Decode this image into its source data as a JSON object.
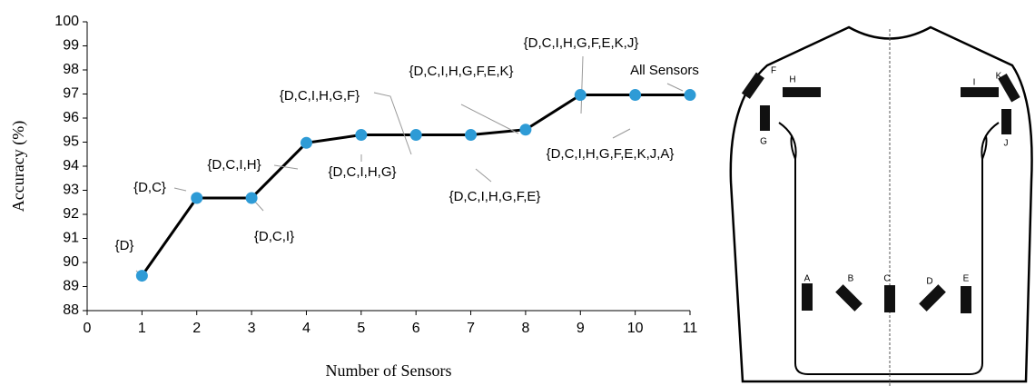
{
  "chart_data": {
    "type": "line",
    "x": [
      1,
      2,
      3,
      4,
      5,
      6,
      7,
      8,
      9,
      10,
      11
    ],
    "values": [
      89.45,
      92.68,
      92.68,
      94.97,
      95.3,
      95.3,
      95.3,
      95.52,
      96.96,
      96.96,
      96.96
    ],
    "annotations": [
      "{D}",
      "{D,C}",
      "{D,C,I}",
      "{D,C,I,H}",
      "{D,C,I,H,G}",
      "{D,C,I,H,G,F}",
      "{D,C,I,H,G,F,E}",
      "{D,C,I,H,G,F,E,K}",
      "{D,C,I,H,G,F,E,K,J}",
      "{D,C,I,H,G,F,E,K,J,A}",
      "All Sensors"
    ],
    "color": "#2e9bd6",
    "line_color": "#000000",
    "xlabel": "Number of Sensors",
    "ylabel": "Accuracy (%)",
    "xlim": [
      0,
      11
    ],
    "xticks": [
      0,
      1,
      2,
      3,
      4,
      5,
      6,
      7,
      8,
      9,
      10,
      11
    ],
    "ylim": [
      88,
      100
    ],
    "yticks": [
      88,
      89,
      90,
      91,
      92,
      93,
      94,
      95,
      96,
      97,
      98,
      99,
      100
    ]
  },
  "diagram": {
    "sensors": [
      "F",
      "H",
      "G",
      "I",
      "K",
      "J",
      "A",
      "B",
      "C",
      "D",
      "E"
    ]
  }
}
